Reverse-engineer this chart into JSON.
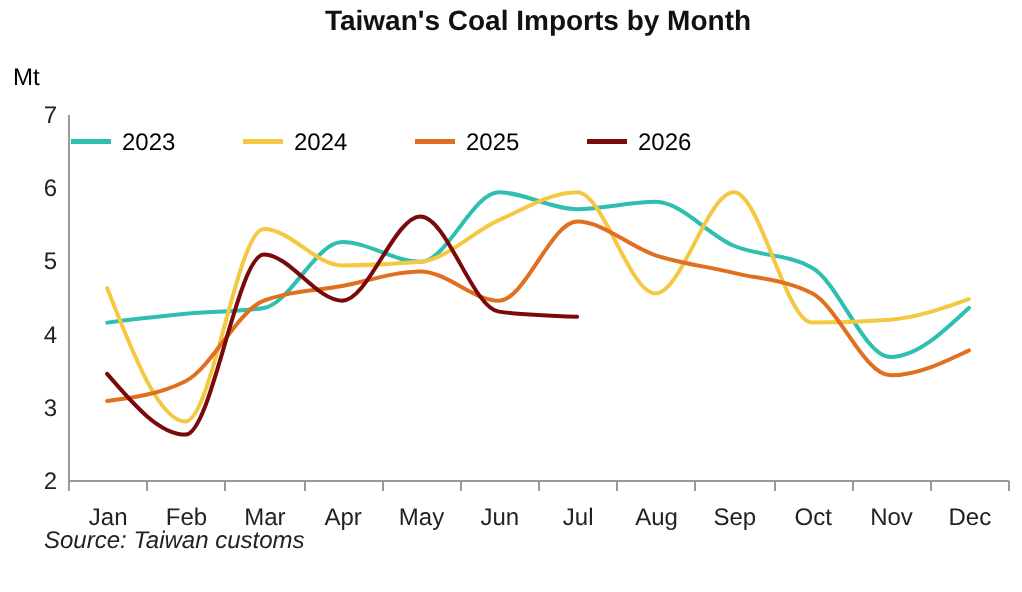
{
  "chart_data": {
    "type": "line",
    "title": "Taiwan's Coal Imports by Month",
    "ylabel": "Mt",
    "categories": [
      "Jan",
      "Feb",
      "Mar",
      "Apr",
      "May",
      "Jun",
      "Jul",
      "Aug",
      "Sep",
      "Oct",
      "Nov",
      "Dec"
    ],
    "series": [
      {
        "name": "2023",
        "color": "#2ebfb0",
        "values": [
          4.15,
          4.27,
          4.35,
          5.25,
          4.98,
          5.93,
          5.7,
          5.8,
          5.2,
          4.9,
          3.68,
          4.35
        ]
      },
      {
        "name": "2024",
        "color": "#f5c842",
        "values": [
          4.62,
          2.8,
          5.43,
          4.93,
          4.98,
          5.55,
          5.93,
          4.55,
          5.93,
          4.15,
          4.19,
          4.47
        ]
      },
      {
        "name": "2025",
        "color": "#e07020",
        "values": [
          3.08,
          3.35,
          4.45,
          4.65,
          4.85,
          4.45,
          5.53,
          5.07,
          4.83,
          4.55,
          3.43,
          3.77
        ]
      },
      {
        "name": "2026",
        "color": "#7a0a0a",
        "values": [
          3.45,
          2.62,
          5.08,
          4.45,
          5.6,
          4.3,
          4.23,
          null,
          null,
          null,
          null,
          null
        ]
      }
    ],
    "ylim": [
      2,
      7
    ],
    "yticks": [
      2,
      3,
      4,
      5,
      6,
      7
    ],
    "grid": false,
    "legend": "top",
    "marker": "none",
    "line_style": "solid",
    "annotations": [
      "Source: Taiwan customs"
    ]
  }
}
